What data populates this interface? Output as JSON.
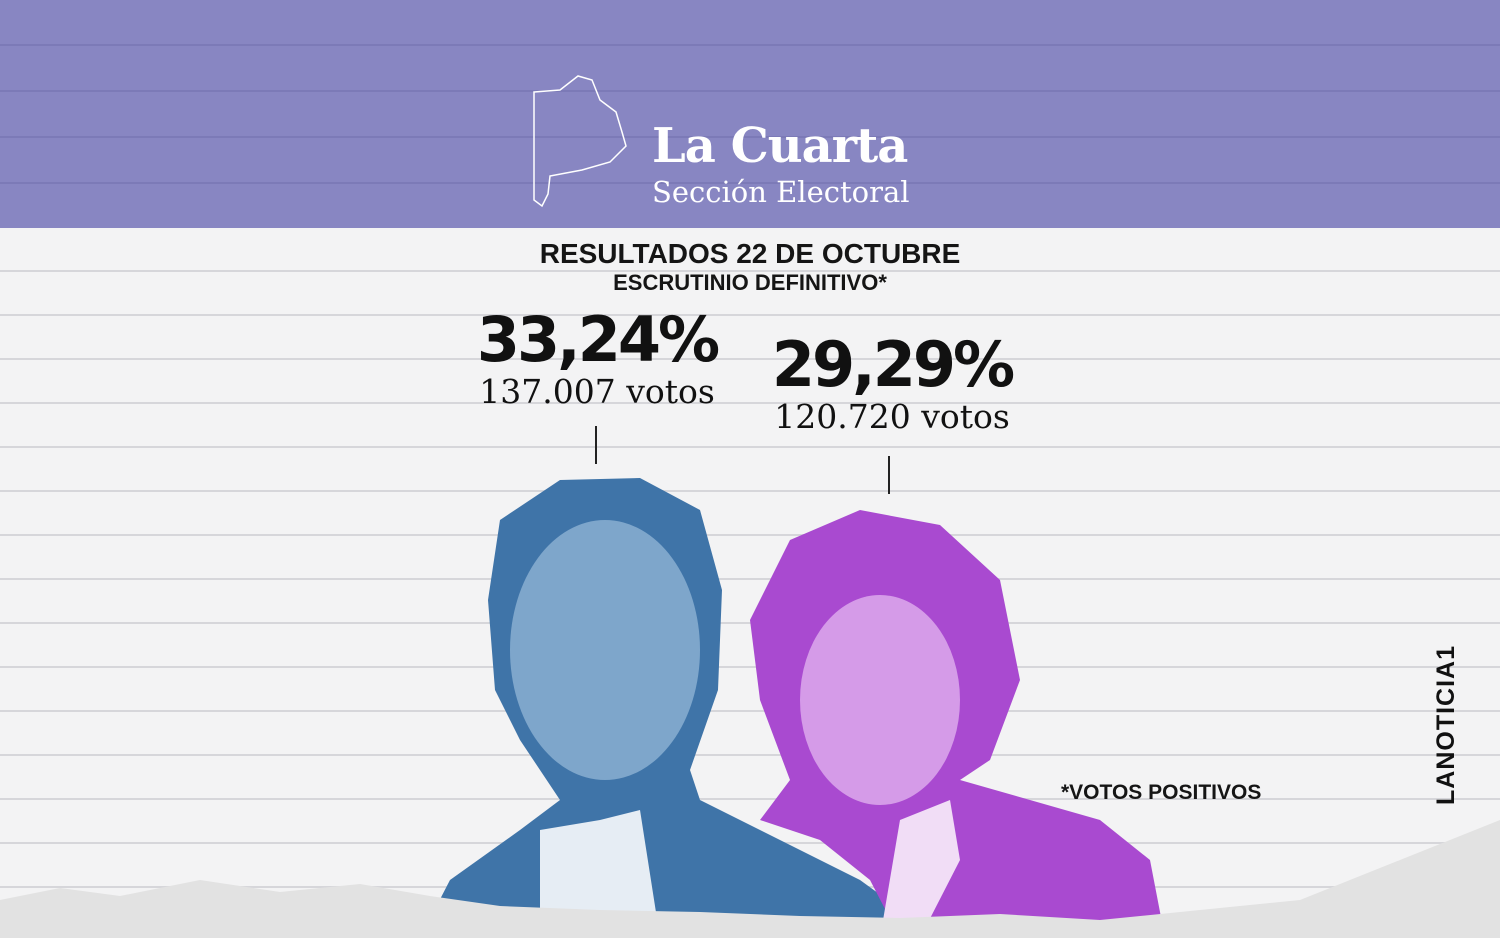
{
  "header": {
    "brand_name": "La Cuarta",
    "brand_subtitle": "Sección Electoral",
    "map_icon": "buenos-aires-province-outline",
    "background_color": "#8886c2"
  },
  "results": {
    "title": "RESULTADOS 22 DE OCTUBRE",
    "subtitle": "ESCRUTINIO DEFINITIVO*"
  },
  "candidates": [
    {
      "percent": "33,24%",
      "votes": "137.007 votos",
      "photo_tint": "#3f74a8"
    },
    {
      "percent": "29,29%",
      "votes": "120.720 votos",
      "photo_tint": "#a94ad0"
    }
  ],
  "footnote": "*VOTOS POSITIVOS",
  "source_logo": "LANOTICIA1"
}
